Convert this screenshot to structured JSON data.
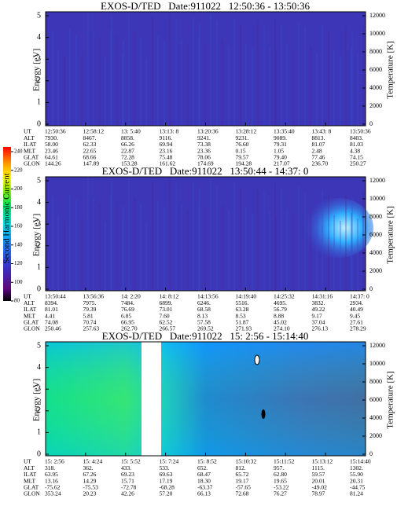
{
  "colorbar": {
    "label": "Second Harmonic Current",
    "lim": [
      80,
      240
    ],
    "ticks": [
      80,
      100,
      120,
      140,
      160,
      180,
      200,
      220,
      240
    ]
  },
  "chart_data": [
    {
      "type": "spectrogram",
      "title": "EXOS-D/TED   Date:911022   12:50:36 - 13:50:36",
      "ylabel": "Energy [eV]",
      "y2label": "Temperature [K]",
      "ylim": [
        0,
        5
      ],
      "yticks": [
        0,
        1,
        2,
        3,
        4,
        5
      ],
      "y2lim": [
        0,
        12000
      ],
      "y2ticks": [
        0,
        2000,
        4000,
        6000,
        8000,
        10000,
        12000
      ],
      "ephemeris": {
        "labels": [
          "UT",
          "ALT",
          "ILAT",
          "MLT",
          "GLAT",
          "GLON"
        ],
        "rows": [
          [
            "12:50:36",
            "12:58:12",
            "13: 5:40",
            "13:13: 8",
            "13:20:36",
            "13:28:12",
            "13:35:40",
            "13:43: 8",
            "13:50:36"
          ],
          [
            "7930.",
            "8467.",
            "8858.",
            "9116.",
            "9241.",
            "9231.",
            "9089.",
            "8813.",
            "8403."
          ],
          [
            "58.00",
            "62.33",
            "66.26",
            "69.94",
            "73.38",
            "76.60",
            "79.31",
            "81.07",
            "81.03"
          ],
          [
            "23.46",
            "22.65",
            "22.87",
            "23.16",
            "23.36",
            "0.15",
            "1.05",
            "2.48",
            "4.38"
          ],
          [
            "64.61",
            "68.66",
            "72.28",
            "75.48",
            "78.06",
            "79.57",
            "79.40",
            "77.46",
            "74.15"
          ],
          [
            "144.26",
            "147.89",
            "153.28",
            "161.62",
            "174.69",
            "194.28",
            "217.07",
            "236.70",
            "250.27"
          ]
        ]
      }
    },
    {
      "type": "spectrogram",
      "title": "EXOS-D/TED   Date:911022   13:50:44 - 14:37: 0",
      "ylabel": "Energy [eV]",
      "y2label": "Temperature [K]",
      "ylim": [
        0,
        5
      ],
      "yticks": [
        0,
        1,
        2,
        3,
        4,
        5
      ],
      "y2lim": [
        0,
        12000
      ],
      "y2ticks": [
        0,
        2000,
        4000,
        6000,
        8000,
        10000,
        12000
      ],
      "ephemeris": {
        "labels": [
          "UT",
          "ALT",
          "ILAT",
          "MLT",
          "GLAT",
          "GLON"
        ],
        "rows": [
          [
            "13:50:44",
            "13:56:36",
            "14: 2:20",
            "14: 8:12",
            "14:13:56",
            "14:19:40",
            "14:25:32",
            "14:31:16",
            "14:37: 0"
          ],
          [
            "8394.",
            "7975.",
            "7484.",
            "6899.",
            "6246.",
            "5516.",
            "4695.",
            "3832.",
            "2934."
          ],
          [
            "81.01",
            "79.39",
            "76.69",
            "73.01",
            "68.58",
            "63.28",
            "56.79",
            "49.22",
            "40.49"
          ],
          [
            "4.41",
            "5.81",
            "6.85",
            "7.60",
            "8.13",
            "8.53",
            "8.88",
            "9.17",
            "9.45"
          ],
          [
            "74.08",
            "70.74",
            "66.95",
            "62.52",
            "57.58",
            "51.87",
            "45.02",
            "37.04",
            "27.61"
          ],
          [
            "250.46",
            "257.63",
            "262.70",
            "266.57",
            "269.52",
            "271.93",
            "274.10",
            "276.13",
            "278.29"
          ]
        ]
      }
    },
    {
      "type": "spectrogram",
      "title": "EXOS-D/TED   Date:911022   15: 2:56 - 15:14:40",
      "ylabel": "Energy [eV]",
      "y2label": "Temperature [K]",
      "ylim": [
        0,
        5
      ],
      "yticks": [
        0,
        1,
        2,
        3,
        4,
        5
      ],
      "y2lim": [
        0,
        12000
      ],
      "y2ticks": [
        0,
        2000,
        4000,
        6000,
        8000,
        10000,
        12000
      ],
      "ephemeris": {
        "labels": [
          "UT",
          "ALT",
          "ILAT",
          "MLT",
          "GLAT",
          "GLON"
        ],
        "rows": [
          [
            "15: 2:56",
            "15: 4:24",
            "15: 5:52",
            "15: 7:24",
            "15: 8:52",
            "15:10:32",
            "15:11:52",
            "15:13:12",
            "15:14:40"
          ],
          [
            "318.",
            "362.",
            "433.",
            "533.",
            "652.",
            "812.",
            "957.",
            "1115.",
            "1302."
          ],
          [
            "63.95",
            "67.26",
            "69.23",
            "69.63",
            "68.47",
            "65.72",
            "62.80",
            "59.57",
            "55.90"
          ],
          [
            "13.16",
            "14.29",
            "15.71",
            "17.19",
            "18.30",
            "19.17",
            "19.65",
            "20.01",
            "20.31"
          ],
          [
            "-75.62",
            "-75.53",
            "-72.78",
            "-68.28",
            "-63.37",
            "-57.65",
            "-53.22",
            "-49.02",
            "-44.75"
          ],
          [
            "353.24",
            "20.23",
            "42.26",
            "57.20",
            "66.13",
            "72.68",
            "76.27",
            "78.97",
            "81.24"
          ]
        ]
      }
    }
  ]
}
